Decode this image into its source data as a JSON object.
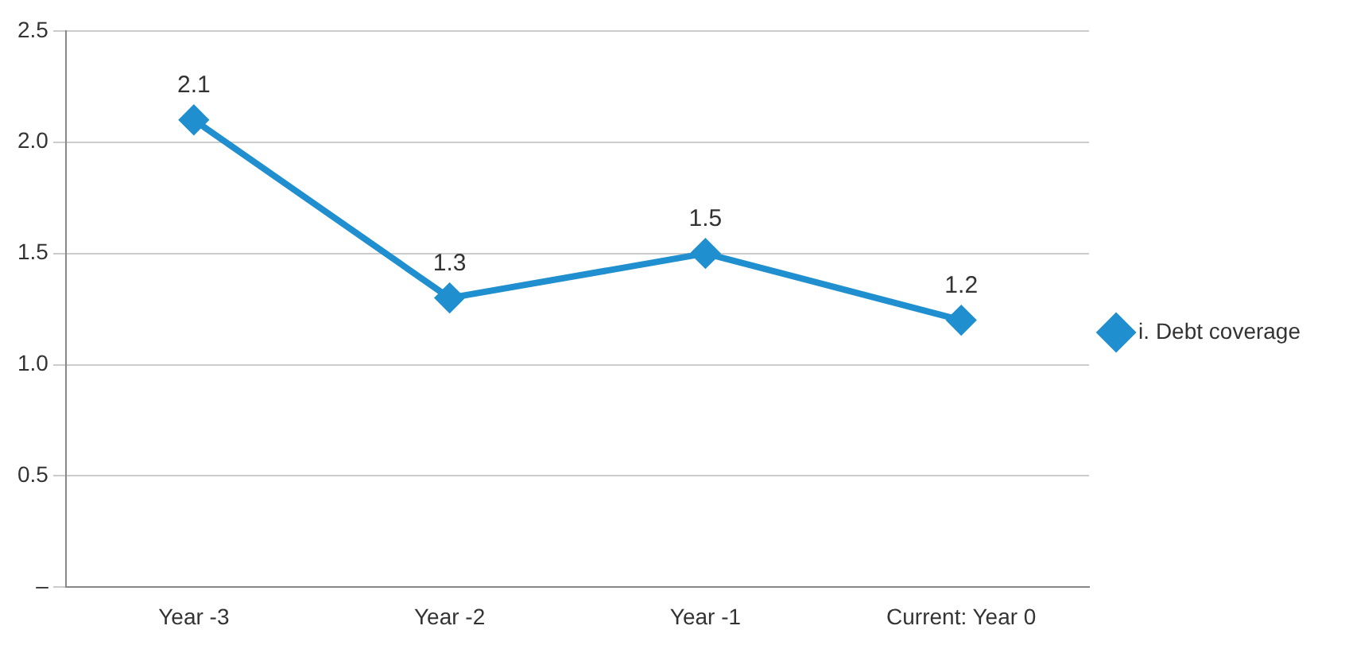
{
  "chart_data": {
    "type": "line",
    "categories": [
      "Year -3",
      "Year -2",
      "Year -1",
      "Current: Year 0"
    ],
    "series": [
      {
        "name": "i. Debt coverage",
        "color": "#1f8fd0",
        "values": [
          2.1,
          1.3,
          1.5,
          1.2
        ]
      }
    ],
    "ylim": [
      0,
      2.5
    ],
    "yticks": [
      {
        "value": 0,
        "label": "–"
      },
      {
        "value": 0.5,
        "label": "0.5"
      },
      {
        "value": 1,
        "label": "1.0"
      },
      {
        "value": 1.5,
        "label": "1.5"
      },
      {
        "value": 2,
        "label": "2.0"
      },
      {
        "value": 2.5,
        "label": "2.5"
      }
    ],
    "grid": "y",
    "legend": "right",
    "marker": "diamond",
    "line_style": "solid",
    "data_labels": true
  }
}
